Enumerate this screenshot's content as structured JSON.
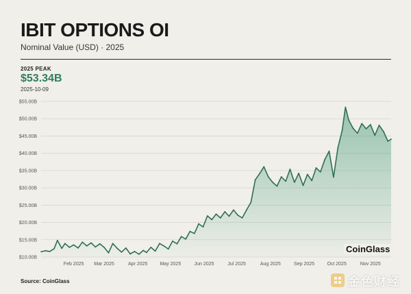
{
  "title": "IBIT OPTIONS OI",
  "subtitle": "Nominal Value (USD) · 2025",
  "peak": {
    "label": "2025 PEAK",
    "value": "$53.34B",
    "date": "2025-10-09"
  },
  "brand": "CoinGlass",
  "source": "Source: CoinGlass",
  "watermark": "金色财经",
  "colors": {
    "line": "#2e6e52",
    "fill": "#4fa07c",
    "peak": "#2e7d5b",
    "grid": "#d6d5cf"
  },
  "chart_data": {
    "type": "area",
    "ylim": [
      10,
      55
    ],
    "y_ticks": [
      10,
      15,
      20,
      25,
      30,
      35,
      40,
      45,
      50,
      55
    ],
    "y_tick_labels": [
      "$10.00B",
      "$15.00B",
      "$20.00B",
      "$25.00B",
      "$30.00B",
      "$35.00B",
      "$40.00B",
      "$45.00B",
      "$50.00B",
      "$55.00B"
    ],
    "xlim": [
      "2025-01-02",
      "2025-11-20"
    ],
    "x_ticks": [
      "2025-02-01",
      "2025-03-01",
      "2025-04-01",
      "2025-05-01",
      "2025-06-01",
      "2025-07-01",
      "2025-08-01",
      "2025-09-01",
      "2025-10-01",
      "2025-11-01"
    ],
    "x_tick_labels": [
      "Feb 2025",
      "Mar 2025",
      "Apr 2025",
      "May 2025",
      "Jun 2025",
      "Jul 2025",
      "Aug 2025",
      "Sep 2025",
      "Oct 2025",
      "Nov 2025"
    ],
    "grid": true,
    "x": [
      "2025-01-02",
      "2025-01-06",
      "2025-01-10",
      "2025-01-14",
      "2025-01-17",
      "2025-01-21",
      "2025-01-24",
      "2025-01-28",
      "2025-02-01",
      "2025-02-05",
      "2025-02-09",
      "2025-02-13",
      "2025-02-17",
      "2025-02-21",
      "2025-02-25",
      "2025-03-01",
      "2025-03-05",
      "2025-03-09",
      "2025-03-13",
      "2025-03-17",
      "2025-03-21",
      "2025-03-25",
      "2025-03-29",
      "2025-04-02",
      "2025-04-06",
      "2025-04-09",
      "2025-04-13",
      "2025-04-17",
      "2025-04-21",
      "2025-04-25",
      "2025-04-29",
      "2025-05-03",
      "2025-05-07",
      "2025-05-11",
      "2025-05-15",
      "2025-05-19",
      "2025-05-23",
      "2025-05-27",
      "2025-05-31",
      "2025-06-04",
      "2025-06-08",
      "2025-06-12",
      "2025-06-16",
      "2025-06-20",
      "2025-06-24",
      "2025-06-28",
      "2025-07-02",
      "2025-07-06",
      "2025-07-10",
      "2025-07-14",
      "2025-07-18",
      "2025-07-22",
      "2025-07-26",
      "2025-07-30",
      "2025-08-03",
      "2025-08-07",
      "2025-08-11",
      "2025-08-15",
      "2025-08-19",
      "2025-08-23",
      "2025-08-27",
      "2025-08-31",
      "2025-09-04",
      "2025-09-08",
      "2025-09-12",
      "2025-09-16",
      "2025-09-20",
      "2025-09-24",
      "2025-09-28",
      "2025-10-02",
      "2025-10-06",
      "2025-10-09",
      "2025-10-12",
      "2025-10-16",
      "2025-10-20",
      "2025-10-24",
      "2025-10-28",
      "2025-11-01",
      "2025-11-05",
      "2025-11-09",
      "2025-11-13",
      "2025-11-17",
      "2025-11-20"
    ],
    "series": [
      {
        "values": [
          11.5,
          11.8,
          11.6,
          12.4,
          14.8,
          12.5,
          13.9,
          12.8,
          13.5,
          12.6,
          14.3,
          13.2,
          14.1,
          12.9,
          13.8,
          12.8,
          11.2,
          13.9,
          12.5,
          11.4,
          12.6,
          10.9,
          11.6,
          10.8,
          11.9,
          11.3,
          12.8,
          11.7,
          13.9,
          13.2,
          12.3,
          14.6,
          13.8,
          15.9,
          15.2,
          17.4,
          16.8,
          19.6,
          18.7,
          21.9,
          20.8,
          22.4,
          21.3,
          23.1,
          21.8,
          23.6,
          22.1,
          21.3,
          23.6,
          25.8,
          32.3,
          34.1,
          36.1,
          33.2,
          31.6,
          30.5,
          33.2,
          31.9,
          35.4,
          31.6,
          34.2,
          30.7,
          33.9,
          32.1,
          35.8,
          34.6,
          38.2,
          40.6,
          33.1,
          41.5,
          46.7,
          53.34,
          49.6,
          47.2,
          45.8,
          48.6,
          47.1,
          48.3,
          45.2,
          48.1,
          46.3,
          43.5,
          44.1
        ]
      }
    ]
  }
}
